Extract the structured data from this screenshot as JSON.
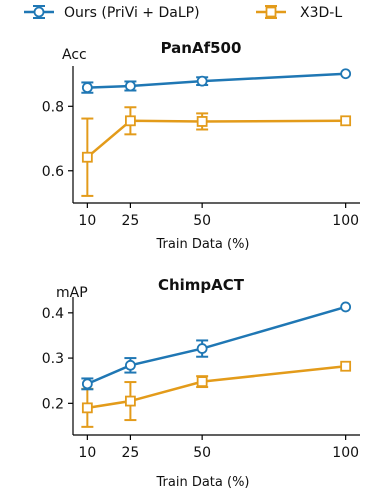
{
  "legend": {
    "items": [
      {
        "label": "Ours (PriVi + DaLP)",
        "color": "#1f77b4",
        "marker": "circle"
      },
      {
        "label": "X3D-L",
        "color": "#e39b1a",
        "marker": "square"
      }
    ]
  },
  "chart_data": [
    {
      "type": "line",
      "title": "PanAf500",
      "ylabel": "Acc",
      "xlabel": "Train Data (%)",
      "x": [
        10,
        25,
        50,
        100
      ],
      "xticks": [
        10,
        25,
        50,
        100
      ],
      "yticks": [
        0.6,
        0.8
      ],
      "ytick_labels": [
        "0.6",
        "0.8"
      ],
      "xlim": [
        5,
        105
      ],
      "ylim": [
        0.5,
        0.925
      ],
      "series": [
        {
          "name": "Ours (PriVi + DaLP)",
          "color": "#1f77b4",
          "marker": "circle",
          "values": [
            0.858,
            0.863,
            0.878,
            0.901
          ],
          "err": [
            0.016,
            0.014,
            0.012,
            0.0
          ]
        },
        {
          "name": "X3D-L",
          "color": "#e39b1a",
          "marker": "square",
          "values": [
            0.642,
            0.755,
            0.753,
            0.755
          ],
          "err": [
            0.12,
            0.042,
            0.025,
            0.0
          ]
        }
      ]
    },
    {
      "type": "line",
      "title": "ChimpACT",
      "ylabel": "mAP",
      "xlabel": "Train Data (%)",
      "x": [
        10,
        25,
        50,
        100
      ],
      "xticks": [
        10,
        25,
        50,
        100
      ],
      "yticks": [
        0.2,
        0.3,
        0.4
      ],
      "ytick_labels": [
        "0.2",
        "0.3",
        "0.4"
      ],
      "xlim": [
        5,
        105
      ],
      "ylim": [
        0.13,
        0.435
      ],
      "series": [
        {
          "name": "Ours (PriVi + DaLP)",
          "color": "#1f77b4",
          "marker": "circle",
          "values": [
            0.243,
            0.284,
            0.321,
            0.413
          ],
          "err": [
            0.012,
            0.016,
            0.018,
            0.0
          ]
        },
        {
          "name": "X3D-L",
          "color": "#e39b1a",
          "marker": "square",
          "values": [
            0.19,
            0.205,
            0.248,
            0.282
          ],
          "err": [
            0.042,
            0.042,
            0.012,
            0.0
          ]
        }
      ]
    }
  ]
}
